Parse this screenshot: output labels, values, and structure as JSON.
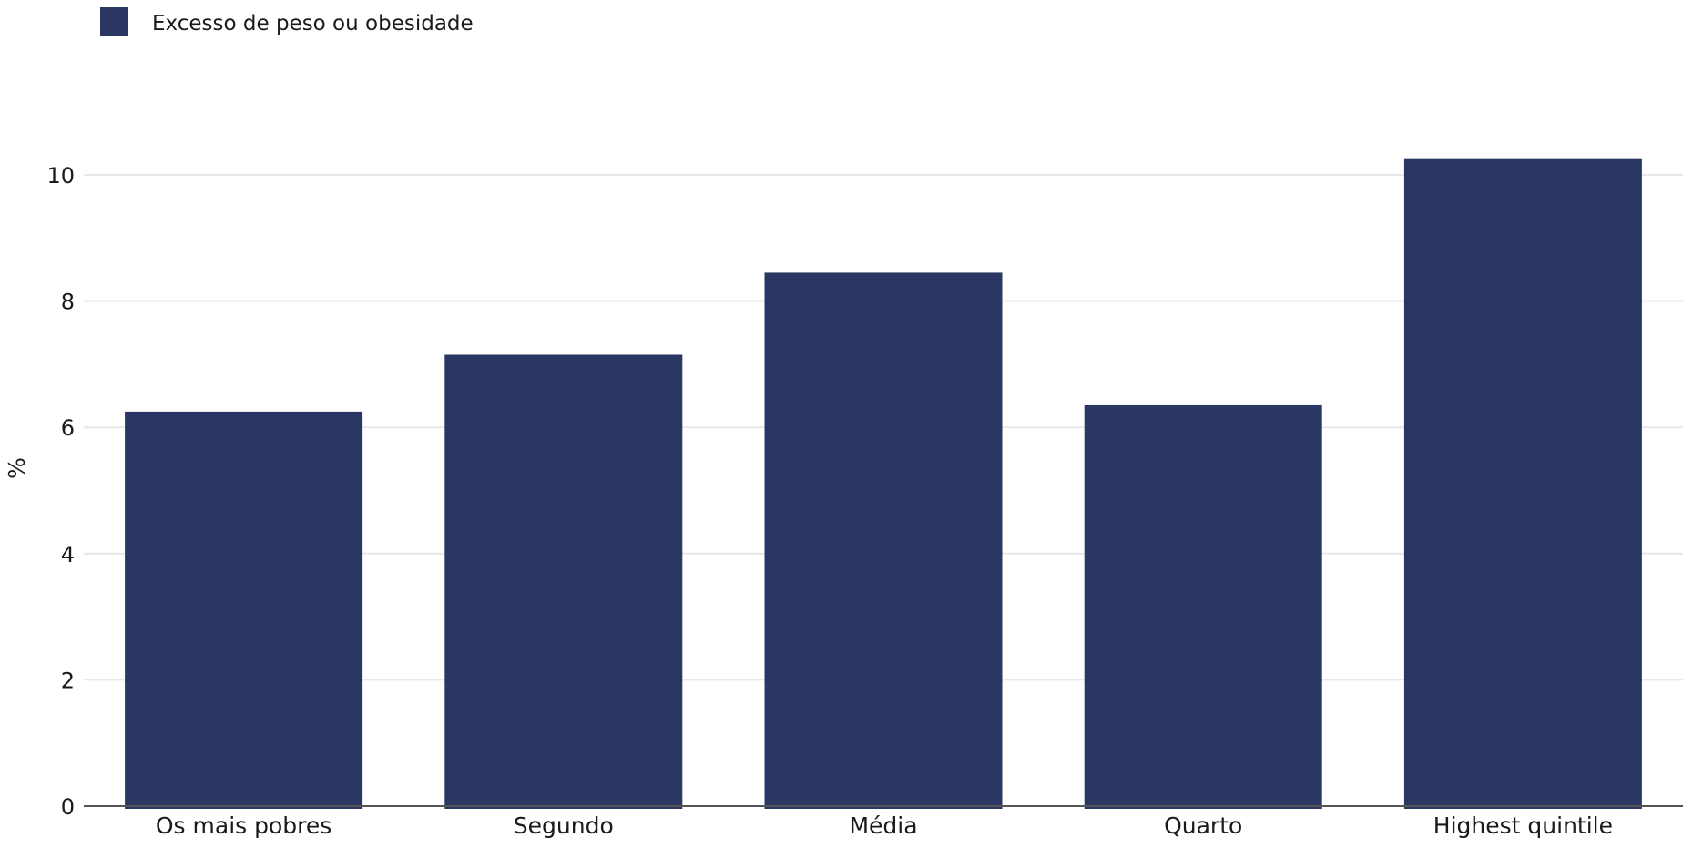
{
  "chart_data": {
    "type": "bar",
    "categories": [
      "Os mais pobres",
      "Segundo",
      "Média",
      "Quarto",
      "Highest quintile"
    ],
    "series": [
      {
        "name": "Excesso de peso ou obesidade",
        "values": [
          6.25,
          7.15,
          8.45,
          6.35,
          10.25
        ]
      }
    ],
    "ylabel": "%",
    "xlabel": "",
    "ylim": [
      0,
      11
    ],
    "yticks": [
      0,
      2,
      4,
      6,
      8,
      10
    ],
    "grid": true,
    "legend_position": "top-left",
    "colors": {
      "bar": "#2b3763",
      "grid": "#e8e8e8",
      "axis": "#555555"
    }
  }
}
